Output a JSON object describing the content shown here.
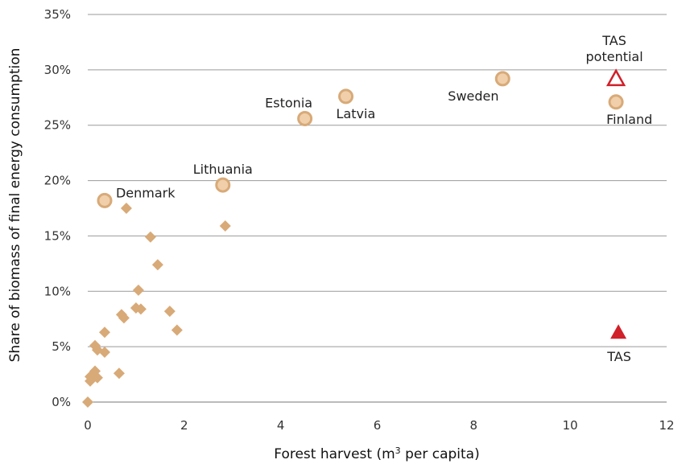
{
  "chart_data": {
    "type": "scatter",
    "xlabel_prefix": "Forest harvest (m",
    "xlabel_sup": "3",
    "xlabel_suffix": " per capita)",
    "ylabel": "Share of biomass of final energy consumption",
    "xlim": [
      0,
      12
    ],
    "ylim": [
      0,
      35
    ],
    "x_ticks": [
      {
        "value": 0,
        "label": "0"
      },
      {
        "value": 2,
        "label": "2"
      },
      {
        "value": 4,
        "label": "4"
      },
      {
        "value": 6,
        "label": "6"
      },
      {
        "value": 8,
        "label": "8"
      },
      {
        "value": 10,
        "label": "10"
      },
      {
        "value": 12,
        "label": "12"
      }
    ],
    "y_ticks": [
      {
        "value": 0,
        "label": "0%"
      },
      {
        "value": 5,
        "label": "5%"
      },
      {
        "value": 10,
        "label": "10%"
      },
      {
        "value": 15,
        "label": "15%"
      },
      {
        "value": 20,
        "label": "20%"
      },
      {
        "value": 25,
        "label": "25%"
      },
      {
        "value": 30,
        "label": "30%"
      },
      {
        "value": 35,
        "label": "35%"
      }
    ],
    "grid": "horizontal",
    "colors": {
      "marker_fill": "#d8aa78",
      "circle_fill": "#f0cfaa",
      "circle_stroke": "#d8aa78",
      "tas_red": "#d0202a"
    },
    "labeled_points": [
      {
        "label": "Denmark",
        "x": 0.35,
        "y": 18.2,
        "label_pos": "right"
      },
      {
        "label": "Lithuania",
        "x": 2.8,
        "y": 19.6,
        "label_pos": "above"
      },
      {
        "label": "Estonia",
        "x": 4.5,
        "y": 25.6,
        "label_pos": "above-left"
      },
      {
        "label": "Latvia",
        "x": 5.35,
        "y": 27.6,
        "label_pos": "below-right"
      },
      {
        "label": "Sweden",
        "x": 8.6,
        "y": 29.2,
        "label_pos": "below-left"
      },
      {
        "label": "Finland",
        "x": 10.95,
        "y": 27.1,
        "label_pos": "below-right"
      }
    ],
    "unlabeled_points": [
      {
        "x": 0.8,
        "y": 17.5
      },
      {
        "x": 2.85,
        "y": 15.9
      },
      {
        "x": 1.3,
        "y": 14.9
      },
      {
        "x": 1.45,
        "y": 12.4
      },
      {
        "x": 1.05,
        "y": 10.1
      },
      {
        "x": 1.0,
        "y": 8.5
      },
      {
        "x": 1.1,
        "y": 8.4
      },
      {
        "x": 1.7,
        "y": 8.2
      },
      {
        "x": 0.7,
        "y": 7.9
      },
      {
        "x": 0.75,
        "y": 7.6
      },
      {
        "x": 1.85,
        "y": 6.5
      },
      {
        "x": 0.35,
        "y": 6.3
      },
      {
        "x": 0.15,
        "y": 5.1
      },
      {
        "x": 0.2,
        "y": 4.7
      },
      {
        "x": 0.35,
        "y": 4.5
      },
      {
        "x": 0.15,
        "y": 2.8
      },
      {
        "x": 0.65,
        "y": 2.6
      },
      {
        "x": 0.05,
        "y": 2.3
      },
      {
        "x": 0.2,
        "y": 2.2
      },
      {
        "x": 0.05,
        "y": 1.9
      },
      {
        "x": 0.0,
        "y": 0.0
      }
    ],
    "tas": {
      "label": "TAS",
      "x": 11.0,
      "y": 6.3,
      "label_pos": "below"
    },
    "tas_potential": {
      "label_line1": "TAS",
      "label_line2": "potential",
      "x": 10.95,
      "y": 29.2,
      "label_pos": "above"
    }
  }
}
